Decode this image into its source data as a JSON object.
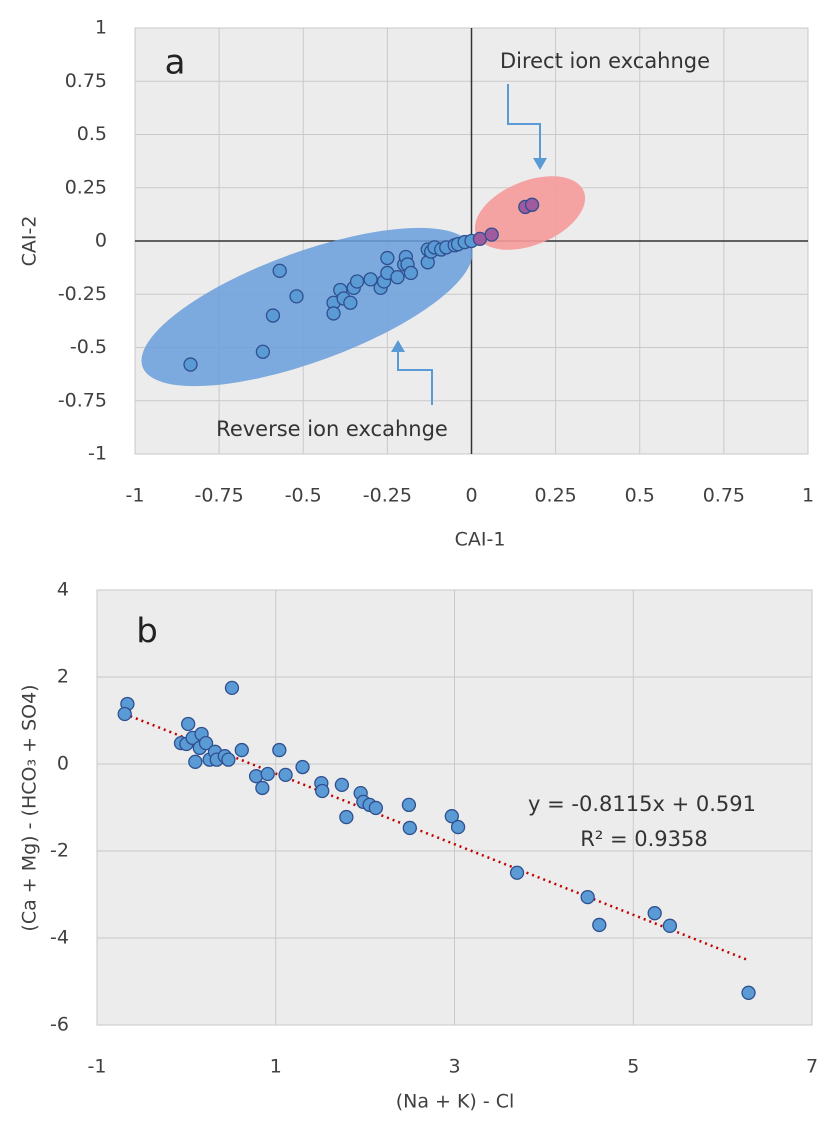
{
  "chart_data": [
    {
      "type": "scatter",
      "x_label": "CAI-1",
      "y_label": "CAI-2",
      "annotations": [
        "a",
        "Direct ion excahnge",
        "Reverse ion excahnge"
      ],
      "xlim": [
        -1,
        1
      ],
      "xticks": [
        -1,
        -0.75,
        -0.5,
        -0.25,
        0,
        0.25,
        0.5,
        0.75,
        1
      ],
      "ylim": [
        -1,
        1
      ],
      "yticks": [
        1,
        0.75,
        0.5,
        0.25,
        0,
        -0.25,
        -0.5,
        -0.75,
        -1
      ],
      "grid": true,
      "zero_axes": true,
      "series": [
        {
          "color": "#5b9bd5",
          "x": [
            -0.835,
            -0.62,
            -0.59,
            -0.57,
            -0.52,
            -0.41,
            -0.41,
            -0.39,
            -0.38,
            -0.36,
            -0.35,
            -0.34,
            -0.3,
            -0.27,
            -0.26,
            -0.25,
            -0.25,
            -0.22,
            -0.2,
            -0.195,
            -0.19,
            -0.18,
            -0.13,
            -0.13,
            -0.12,
            -0.11,
            -0.09,
            -0.075,
            -0.05,
            -0.04,
            -0.02,
            0
          ],
          "values": [
            -0.58,
            -0.52,
            -0.35,
            -0.14,
            -0.26,
            -0.29,
            -0.34,
            -0.23,
            -0.27,
            -0.29,
            -0.22,
            -0.19,
            -0.18,
            -0.22,
            -0.19,
            -0.08,
            -0.15,
            -0.17,
            -0.11,
            -0.075,
            -0.11,
            -0.15,
            -0.1,
            -0.04,
            -0.05,
            -0.03,
            -0.04,
            -0.03,
            -0.02,
            -0.015,
            -0.005,
            0
          ]
        },
        {
          "color": "#a05a9e",
          "x": [
            0.025,
            0.06,
            0.16,
            0.18
          ],
          "values": [
            0.01,
            0.03,
            0.16,
            0.17
          ]
        }
      ]
    },
    {
      "type": "scatter",
      "x_label": "(Na + K) - Cl",
      "y_label": "(Ca + Mg) - (HCO₃ + SO4)",
      "annotations": [
        "b"
      ],
      "xlim": [
        -1,
        7
      ],
      "xticks": [
        -1,
        1,
        3,
        5,
        7
      ],
      "ylim": [
        -6,
        4
      ],
      "yticks": [
        4,
        2,
        0,
        -2,
        -4,
        -6
      ],
      "grid": true,
      "zero_axes": false,
      "series": [
        {
          "color": "#5b9bd5",
          "x": [
            -0.66,
            -0.69,
            0.51,
            -0.06,
            0.02,
            0,
            0.07,
            0.1,
            0.17,
            0.15,
            0.22,
            0.26,
            0.32,
            0.34,
            0.43,
            0.47,
            0.62,
            0.78,
            0.85,
            0.91,
            1.04,
            1.11,
            1.3,
            1.51,
            1.52,
            1.74,
            1.79,
            1.95,
            1.98,
            2.05,
            2.12,
            2.49,
            2.5,
            2.97,
            3.04,
            3.7,
            4.49,
            4.62,
            5.24,
            5.41,
            6.29
          ],
          "values": [
            1.38,
            1.15,
            1.75,
            0.48,
            0.92,
            0.46,
            0.6,
            0.05,
            0.69,
            0.37,
            0.48,
            0.1,
            0.28,
            0.1,
            0.18,
            0.1,
            0.32,
            -0.28,
            -0.55,
            -0.23,
            0.32,
            -0.25,
            -0.07,
            -0.44,
            -0.62,
            -0.48,
            -1.22,
            -0.67,
            -0.87,
            -0.94,
            -1.01,
            -0.94,
            -1.47,
            -1.2,
            -1.45,
            -2.5,
            -3.06,
            -3.7,
            -3.43,
            -3.72,
            -5.26
          ]
        }
      ],
      "trendline": {
        "slope": -0.8115,
        "intercept": 0.591,
        "color": "#c00000",
        "label": "y = -0.8115x + 0.591",
        "r2_label": "R² = 0.9358"
      }
    }
  ]
}
